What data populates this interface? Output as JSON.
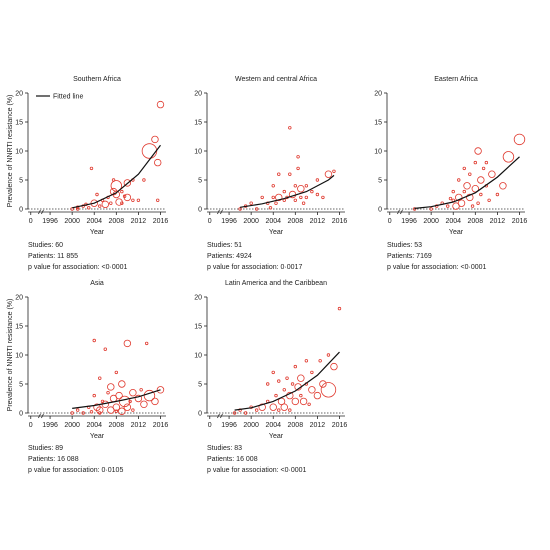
{
  "colors": {
    "bubble": "#e03a2f",
    "fit": "#111111",
    "axis": "#222222",
    "zero": "#333333"
  },
  "ylabel": "Prevalence of NNRTI resistance (%)",
  "legend_label": "Fitted line",
  "chart_data": [
    {
      "type": "scatter",
      "title": "Southern Africa",
      "xlabel": "Year",
      "xlim": [
        0,
        2017
      ],
      "ylim": [
        0,
        20
      ],
      "x_ticks": [
        "0",
        "1996",
        "2000",
        "2004",
        "2008",
        "2012",
        "2016"
      ],
      "y_ticks": [
        0,
        5,
        10,
        15,
        20
      ],
      "legend": true,
      "stats": {
        "studies": "Studies: 60",
        "patients": "Patients: 11 855",
        "pvalue": "p value for association: <0·0001"
      },
      "fit": [
        [
          2000,
          0.2
        ],
        [
          2004,
          1.0
        ],
        [
          2008,
          2.8
        ],
        [
          2012,
          6.0
        ],
        [
          2016,
          11
        ]
      ],
      "points": [
        [
          2000,
          0,
          1
        ],
        [
          2001,
          0.3,
          1
        ],
        [
          2002,
          0.5,
          1
        ],
        [
          2003,
          0.2,
          1
        ],
        [
          2003.5,
          7,
          1
        ],
        [
          2004,
          1.0,
          2
        ],
        [
          2004.5,
          2.5,
          1
        ],
        [
          2005,
          0.5,
          1
        ],
        [
          2005.5,
          1.5,
          1
        ],
        [
          2006,
          0.8,
          2
        ],
        [
          2006.5,
          2.0,
          1
        ],
        [
          2007,
          1.0,
          1
        ],
        [
          2007.5,
          3.0,
          2
        ],
        [
          2007.5,
          5.0,
          1
        ],
        [
          2008,
          2.5,
          2
        ],
        [
          2008,
          4.0,
          3
        ],
        [
          2008.5,
          1.2,
          2
        ],
        [
          2009,
          3.0,
          1
        ],
        [
          2009,
          1.0,
          1
        ],
        [
          2010,
          2.0,
          2
        ],
        [
          2010,
          4.5,
          2
        ],
        [
          2011,
          1.5,
          1
        ],
        [
          2011,
          5.0,
          1
        ],
        [
          2012,
          1.5,
          1
        ],
        [
          2013,
          5.0,
          1
        ],
        [
          2014,
          10,
          4
        ],
        [
          2015,
          12,
          2
        ],
        [
          2015.5,
          8.0,
          2
        ],
        [
          2015.5,
          1.5,
          1
        ],
        [
          2016,
          18,
          2
        ],
        [
          2001,
          0,
          1
        ],
        [
          2002.5,
          0.8,
          1
        ],
        [
          2009.5,
          2.2,
          1
        ]
      ]
    },
    {
      "type": "scatter",
      "title": "Western and central Africa",
      "xlabel": "Year",
      "xlim": [
        0,
        2017
      ],
      "ylim": [
        0,
        20
      ],
      "x_ticks": [
        "0",
        "1996",
        "2000",
        "2004",
        "2008",
        "2012",
        "2016"
      ],
      "y_ticks": [
        0,
        5,
        10,
        15,
        20
      ],
      "legend": false,
      "stats": {
        "studies": "Studies: 51",
        "patients": "Patients: 4924",
        "pvalue": "p value for association: 0·0017"
      },
      "fit": [
        [
          1998,
          0.3
        ],
        [
          2002,
          0.9
        ],
        [
          2006,
          1.8
        ],
        [
          2010,
          3.0
        ],
        [
          2014,
          5.0
        ],
        [
          2015,
          5.8
        ]
      ],
      "points": [
        [
          1998,
          0,
          1
        ],
        [
          1999,
          0.5,
          1
        ],
        [
          2000,
          1.0,
          1
        ],
        [
          2001,
          0,
          1
        ],
        [
          2002,
          2.0,
          1
        ],
        [
          2003,
          1.0,
          1
        ],
        [
          2003.5,
          0.2,
          1
        ],
        [
          2004,
          2.0,
          1
        ],
        [
          2004,
          4.0,
          1
        ],
        [
          2004.5,
          1.0,
          1
        ],
        [
          2005,
          6.0,
          1
        ],
        [
          2005,
          2.0,
          2
        ],
        [
          2006,
          1.5,
          1
        ],
        [
          2006,
          3.0,
          1
        ],
        [
          2006.5,
          2.0,
          1
        ],
        [
          2007,
          14,
          1
        ],
        [
          2007,
          6.0,
          1
        ],
        [
          2007.5,
          2.5,
          2
        ],
        [
          2008,
          4.0,
          1
        ],
        [
          2008,
          1.5,
          1
        ],
        [
          2008.5,
          9.0,
          1
        ],
        [
          2008.5,
          7.0,
          1
        ],
        [
          2009,
          3.5,
          2
        ],
        [
          2009,
          2.0,
          1
        ],
        [
          2010,
          2.0,
          1
        ],
        [
          2010,
          4.0,
          1
        ],
        [
          2011,
          3.0,
          1
        ],
        [
          2012,
          5.0,
          1
        ],
        [
          2013,
          2.0,
          1
        ],
        [
          2014,
          6.0,
          2
        ],
        [
          2015,
          6.5,
          1
        ],
        [
          2012,
          2.5,
          1
        ],
        [
          2009.5,
          1.0,
          1
        ]
      ]
    },
    {
      "type": "scatter",
      "title": "Eastern Africa",
      "xlabel": "Year",
      "xlim": [
        0,
        2017
      ],
      "ylim": [
        0,
        20
      ],
      "x_ticks": [
        "0",
        "1996",
        "2000",
        "2004",
        "2008",
        "2012",
        "2016"
      ],
      "y_ticks": [
        0,
        5,
        10,
        15,
        20
      ],
      "legend": false,
      "stats": {
        "studies": "Studies: 53",
        "patients": "Patients: 7169",
        "pvalue": "p value for association: <0·0001"
      },
      "fit": [
        [
          1997,
          0.1
        ],
        [
          2000,
          0.4
        ],
        [
          2004,
          1.2
        ],
        [
          2008,
          2.8
        ],
        [
          2012,
          5.5
        ],
        [
          2016,
          9.0
        ]
      ],
      "points": [
        [
          1997,
          0,
          1
        ],
        [
          2000,
          0,
          1
        ],
        [
          2001,
          0.5,
          1
        ],
        [
          2002,
          1.0,
          1
        ],
        [
          2003,
          0.5,
          1
        ],
        [
          2004,
          1.5,
          1
        ],
        [
          2004,
          3.0,
          1
        ],
        [
          2004.5,
          0.5,
          2
        ],
        [
          2005,
          2.0,
          2
        ],
        [
          2005,
          5.0,
          1
        ],
        [
          2005.5,
          1.0,
          2
        ],
        [
          2006,
          3.0,
          1
        ],
        [
          2006,
          7.0,
          1
        ],
        [
          2006.5,
          4.0,
          2
        ],
        [
          2007,
          2.0,
          2
        ],
        [
          2007,
          6.0,
          1
        ],
        [
          2007.5,
          0.5,
          1
        ],
        [
          2008,
          3.5,
          2
        ],
        [
          2008,
          8.0,
          1
        ],
        [
          2008.5,
          10,
          2
        ],
        [
          2008.5,
          1.0,
          1
        ],
        [
          2009,
          5.0,
          2
        ],
        [
          2009,
          2.5,
          1
        ],
        [
          2010,
          4.0,
          1
        ],
        [
          2010,
          8.0,
          1
        ],
        [
          2011,
          6.0,
          2
        ],
        [
          2012,
          2.5,
          1
        ],
        [
          2013,
          4.0,
          2
        ],
        [
          2014,
          9.0,
          3
        ],
        [
          2016,
          12,
          3
        ],
        [
          2010.5,
          1.5,
          1
        ],
        [
          2003.5,
          1.8,
          1
        ],
        [
          2009.5,
          7.0,
          1
        ]
      ]
    },
    {
      "type": "scatter",
      "title": "Asia",
      "xlabel": "Year",
      "xlim": [
        0,
        2017
      ],
      "ylim": [
        0,
        20
      ],
      "x_ticks": [
        "0",
        "1996",
        "2000",
        "2004",
        "2008",
        "2012",
        "2016"
      ],
      "y_ticks": [
        0,
        5,
        10,
        15,
        20
      ],
      "legend": false,
      "stats": {
        "studies": "Studies: 89",
        "patients": "Patients: 16 088",
        "pvalue": "p value for association: 0·0105"
      },
      "fit": [
        [
          2000,
          0.8
        ],
        [
          2004,
          1.3
        ],
        [
          2008,
          2.0
        ],
        [
          2012,
          2.8
        ],
        [
          2016,
          4.0
        ]
      ],
      "points": [
        [
          2000,
          0,
          1
        ],
        [
          2001,
          0.5,
          1
        ],
        [
          2002,
          0,
          1
        ],
        [
          2003,
          1.0,
          1
        ],
        [
          2003.5,
          0.2,
          1
        ],
        [
          2004,
          12.5,
          1
        ],
        [
          2004,
          3.0,
          1
        ],
        [
          2004.5,
          1.0,
          2
        ],
        [
          2005,
          0.5,
          2
        ],
        [
          2005,
          6.0,
          1
        ],
        [
          2005.5,
          2.0,
          1
        ],
        [
          2006,
          11,
          1
        ],
        [
          2006,
          1.5,
          2
        ],
        [
          2006.5,
          3.5,
          1
        ],
        [
          2007,
          0.5,
          2
        ],
        [
          2007,
          4.5,
          2
        ],
        [
          2007.5,
          2.5,
          2
        ],
        [
          2008,
          1.0,
          2
        ],
        [
          2008,
          7.0,
          1
        ],
        [
          2008.5,
          3.0,
          2
        ],
        [
          2009,
          0.3,
          2
        ],
        [
          2009,
          5.0,
          2
        ],
        [
          2009.5,
          2.0,
          3
        ],
        [
          2010,
          12,
          2
        ],
        [
          2010,
          1.0,
          2
        ],
        [
          2011,
          3.5,
          2
        ],
        [
          2011,
          0.5,
          1
        ],
        [
          2012,
          2.5,
          2
        ],
        [
          2012.5,
          4.0,
          1
        ],
        [
          2013,
          1.5,
          2
        ],
        [
          2013.5,
          12,
          1
        ],
        [
          2014,
          3.0,
          3
        ],
        [
          2015,
          2.0,
          2
        ],
        [
          2016,
          4.0,
          2
        ],
        [
          2005,
          0,
          1
        ],
        [
          2008,
          0.3,
          1
        ],
        [
          2010.5,
          2.0,
          1
        ]
      ]
    },
    {
      "type": "scatter",
      "title": "Latin America and the Caribbean",
      "xlabel": "Year",
      "xlim": [
        0,
        2017
      ],
      "ylim": [
        0,
        20
      ],
      "x_ticks": [
        "0",
        "1996",
        "2000",
        "2004",
        "2008",
        "2012",
        "2016"
      ],
      "y_ticks": [
        0,
        5,
        10,
        15,
        20
      ],
      "legend": false,
      "stats": {
        "studies": "Studies: 83",
        "patients": "Patients: 16 008",
        "pvalue": "p value for association: <0·0001"
      },
      "fit": [
        [
          1997,
          0.5
        ],
        [
          2000,
          0.9
        ],
        [
          2004,
          2.0
        ],
        [
          2008,
          3.8
        ],
        [
          2012,
          6.5
        ],
        [
          2016,
          10.5
        ]
      ],
      "points": [
        [
          1997,
          0,
          1
        ],
        [
          1998,
          0.5,
          1
        ],
        [
          1999,
          0,
          1
        ],
        [
          2000,
          1.0,
          1
        ],
        [
          2001,
          0.5,
          1
        ],
        [
          2002,
          1.0,
          2
        ],
        [
          2003,
          2.0,
          1
        ],
        [
          2003,
          5.0,
          1
        ],
        [
          2004,
          1.0,
          2
        ],
        [
          2004,
          7.0,
          1
        ],
        [
          2004.5,
          3.0,
          1
        ],
        [
          2005,
          0.5,
          1
        ],
        [
          2005,
          5.5,
          1
        ],
        [
          2005.5,
          2.0,
          2
        ],
        [
          2006,
          4.0,
          1
        ],
        [
          2006,
          1.0,
          2
        ],
        [
          2006.5,
          6.0,
          1
        ],
        [
          2007,
          3.0,
          2
        ],
        [
          2007,
          0.5,
          1
        ],
        [
          2007.5,
          5.0,
          1
        ],
        [
          2008,
          2.0,
          2
        ],
        [
          2008,
          8.0,
          1
        ],
        [
          2008.5,
          4.5,
          2
        ],
        [
          2009,
          3.0,
          1
        ],
        [
          2009,
          6.0,
          2
        ],
        [
          2009.5,
          2.0,
          2
        ],
        [
          2010,
          5.0,
          1
        ],
        [
          2010,
          9.0,
          1
        ],
        [
          2011,
          4.0,
          2
        ],
        [
          2011,
          7.0,
          1
        ],
        [
          2012,
          3.0,
          2
        ],
        [
          2012.5,
          9.0,
          1
        ],
        [
          2013,
          5.0,
          2
        ],
        [
          2014,
          4.0,
          4
        ],
        [
          2014,
          10,
          1
        ],
        [
          2015,
          8.0,
          2
        ],
        [
          2016,
          18,
          1
        ],
        [
          2010.5,
          1.5,
          1
        ]
      ]
    }
  ]
}
